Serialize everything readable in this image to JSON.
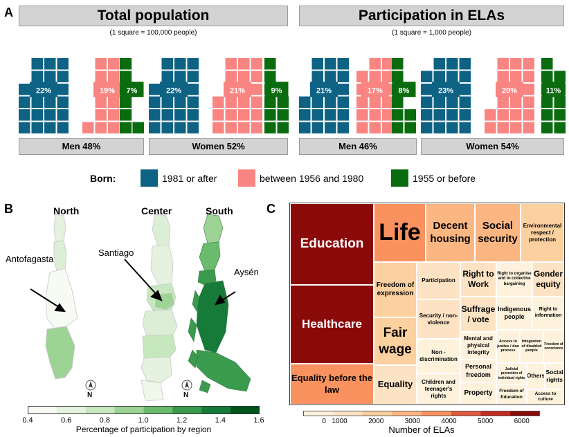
{
  "panel_a": {
    "letter": "A",
    "total": {
      "title": "Total population",
      "scale": "(1 square = 100,000 people)"
    },
    "ela": {
      "title": "Participation in ELAs",
      "scale": "(1 square = 1,000 people)"
    },
    "footers": {
      "total_men": "Men 48%",
      "total_women": "Women 52%",
      "ela_men": "Men 46%",
      "ela_women": "Women 54%"
    },
    "legend": {
      "title": "Born:",
      "items": [
        "1981 or after",
        "between 1956 and 1980",
        "1955 or before"
      ]
    },
    "colors": {
      "teal": "#0e6384",
      "pink": "#f98582",
      "green": "#0a6c0e"
    },
    "chart_data": {
      "type": "waffle",
      "categories": [
        "1981 or after",
        "between 1956 and 1980",
        "1955 or before"
      ],
      "groups": [
        {
          "name": "Total population - Men",
          "values": [
            22,
            19,
            7
          ],
          "labels": [
            "22%",
            "19%",
            "7%"
          ]
        },
        {
          "name": "Total population - Women",
          "values": [
            22,
            21,
            9
          ],
          "labels": [
            "22%",
            "21%",
            "9%"
          ]
        },
        {
          "name": "Participation in ELAs - Men",
          "values": [
            21,
            17,
            8
          ],
          "labels": [
            "21%",
            "17%",
            "8%"
          ]
        },
        {
          "name": "Participation in ELAs - Women",
          "values": [
            23,
            20,
            11
          ],
          "labels": [
            "23%",
            "20%",
            "11%"
          ]
        }
      ]
    }
  },
  "panel_b": {
    "letter": "B",
    "regions": [
      "North",
      "Center",
      "South"
    ],
    "annotations": {
      "antofagasta": "Antofagasta",
      "santiago": "Santiago",
      "aysen": "Aysén"
    },
    "north_arrow": "N",
    "colorbar": {
      "label": "Percentage of participation by region",
      "ticks": [
        "0.4",
        "0.6",
        "0.8",
        "1.0",
        "1.2",
        "1.4",
        "1.6"
      ],
      "min": 0.4,
      "max": 1.6,
      "colors": [
        "#f7fbf4",
        "#e4f2df",
        "#c7e8bf",
        "#9ed396",
        "#6bbb6e",
        "#3a9a4e",
        "#167a38",
        "#00541e"
      ]
    }
  },
  "panel_c": {
    "letter": "C",
    "chart_data": {
      "type": "treemap",
      "items": [
        {
          "name": "Education",
          "value": 6500
        },
        {
          "name": "Healthcare",
          "value": 6000
        },
        {
          "name": "Equality before the law",
          "value": 3200
        },
        {
          "name": "Life",
          "value": 3500
        },
        {
          "name": "Decent housing",
          "value": 3000
        },
        {
          "name": "Social security",
          "value": 2800
        },
        {
          "name": "Environmental respect / protection",
          "value": 2300
        },
        {
          "name": "Freedom of expression",
          "value": 1700
        },
        {
          "name": "Fair wage",
          "value": 2000
        },
        {
          "name": "Equality",
          "value": 1500
        },
        {
          "name": "Participation",
          "value": 1000
        },
        {
          "name": "Security / non-violence",
          "value": 900
        },
        {
          "name": "Non - discrimination",
          "value": 800
        },
        {
          "name": "Children and teenager's rights",
          "value": 800
        },
        {
          "name": "Right to Work",
          "value": 1100
        },
        {
          "name": "Suffrage / vote",
          "value": 1000
        },
        {
          "name": "Right to organise and to collective bargaining",
          "value": 800
        },
        {
          "name": "Gender equity",
          "value": 1000
        },
        {
          "name": "Indigenous people",
          "value": 700
        },
        {
          "name": "Right to information",
          "value": 600
        },
        {
          "name": "Mental and physical integrity",
          "value": 600
        },
        {
          "name": "Personal freedom",
          "value": 600
        },
        {
          "name": "Property",
          "value": 500
        },
        {
          "name": "Access to justice / due process",
          "value": 400
        },
        {
          "name": "Integration of disabled people",
          "value": 400
        },
        {
          "name": "Freedom of conscience",
          "value": 300
        },
        {
          "name": "Judicial protection of individual rights",
          "value": 250
        },
        {
          "name": "Freedom of Education",
          "value": 350
        },
        {
          "name": "Others",
          "value": 300
        },
        {
          "name": "Social rights",
          "value": 350
        },
        {
          "name": "Access to culture",
          "value": 250
        }
      ],
      "colorbar": {
        "label": "Number of ELAs",
        "ticks": [
          "0",
          "1000",
          "2000",
          "3000",
          "4000",
          "5000",
          "6000"
        ],
        "min": 0,
        "max": 6500,
        "colors": [
          "#fff2dd",
          "#fde3c4",
          "#fdd09f",
          "#fcb682",
          "#f9925f",
          "#e25a3e",
          "#c22c23",
          "#8a0a0a"
        ]
      }
    }
  }
}
